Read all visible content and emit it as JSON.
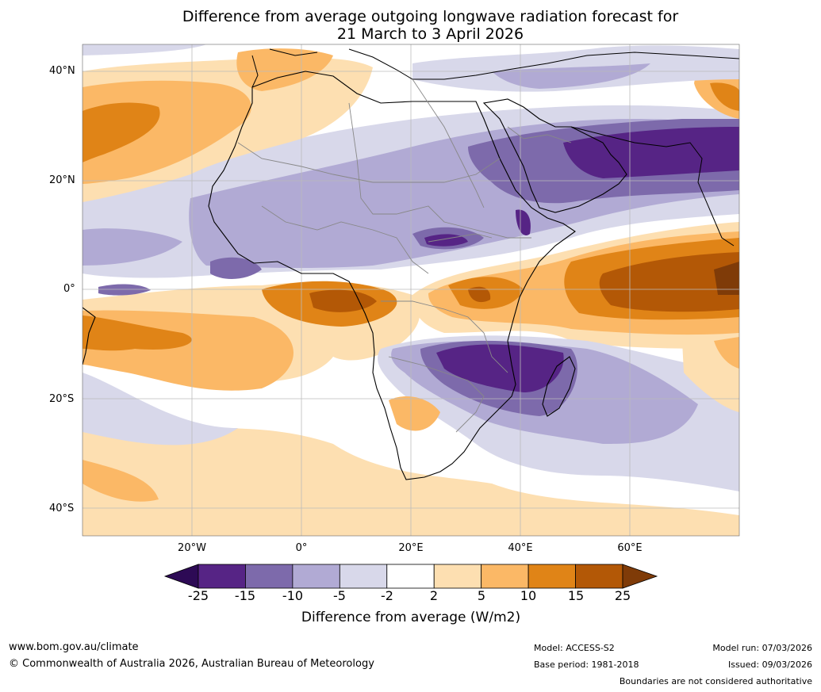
{
  "title_line1": "Difference from average outgoing longwave radiation forecast for",
  "title_line2": "21 March to 3 April 2026",
  "y_axis_labels": [
    "40°N",
    "20°N",
    "0°",
    "20°S",
    "40°S"
  ],
  "x_axis_labels": [
    "20°W",
    "0°",
    "20°E",
    "40°E",
    "60°E"
  ],
  "colorbar": {
    "ticks": [
      "-25",
      "-15",
      "-10",
      "-5",
      "-2",
      "2",
      "5",
      "10",
      "15",
      "25"
    ],
    "colors": [
      "#2d0a55",
      "#562485",
      "#7d6aab",
      "#b1aad4",
      "#d8d8ea",
      "#ffffff",
      "#fddfb1",
      "#fbb866",
      "#e08417",
      "#b35806",
      "#7f3b08"
    ],
    "title": "Difference from average (W/m2)"
  },
  "footer": {
    "website": "www.bom.gov.au/climate",
    "copyright": "© Commonwealth of Australia 2026, Australian Bureau of Meteorology",
    "model": "Model: ACCESS-S2",
    "base_period": "Base period: 1981-2018",
    "model_run": "Model run: 07/03/2026",
    "issued": "Issued: 09/03/2026",
    "disclaimer": "Boundaries are not considered authoritative"
  }
}
